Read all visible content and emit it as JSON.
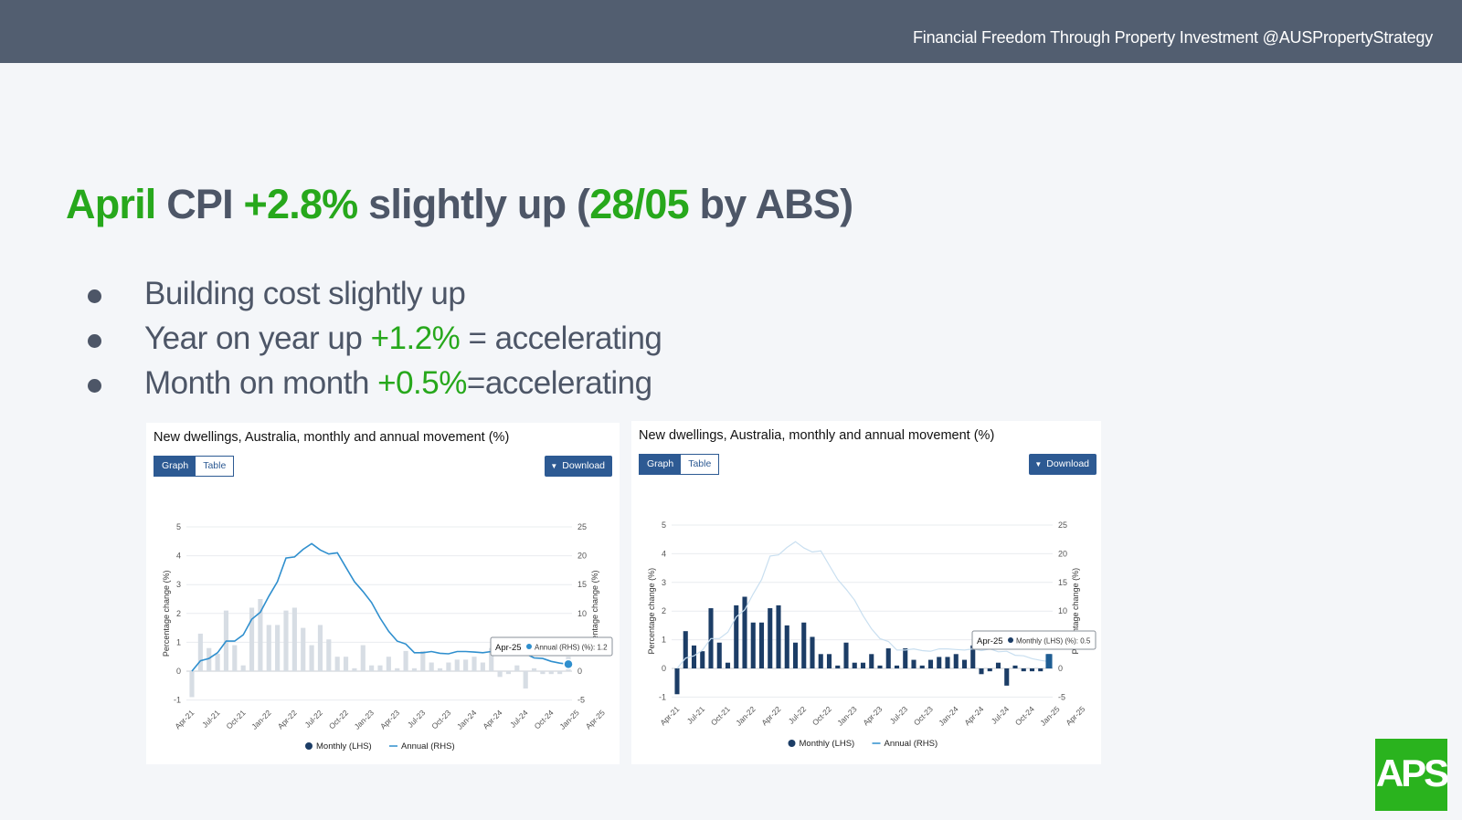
{
  "header": {
    "tagline": "Financial Freedom Through Property Investment @AUSPropertyStrategy"
  },
  "headline": {
    "parts": [
      {
        "text": "April",
        "color": "#27a81c"
      },
      {
        "text": " CPI ",
        "color": "#4d5667"
      },
      {
        "text": "+2.8%",
        "color": "#27a81c"
      },
      {
        "text": " slightly up (",
        "color": "#4d5667"
      },
      {
        "text": "28/05",
        "color": "#27a81c"
      },
      {
        "text": " by ABS)",
        "color": "#4d5667"
      }
    ]
  },
  "bullets": [
    {
      "parts": [
        {
          "text": "Building cost slightly up",
          "hl": false
        }
      ]
    },
    {
      "parts": [
        {
          "text": "Year on year up ",
          "hl": false
        },
        {
          "text": "+1.2%",
          "hl": true
        },
        {
          "text": " = accelerating",
          "hl": false
        }
      ]
    },
    {
      "parts": [
        {
          "text": "Month on month ",
          "hl": false
        },
        {
          "text": "+0.5%",
          "hl": true
        },
        {
          "text": "=accelerating",
          "hl": false
        }
      ]
    }
  ],
  "panels": [
    {
      "title": "New dwellings, Australia, monthly and annual movement (%)",
      "graph_tab": "Graph",
      "table_tab": "Table",
      "download": "Download"
    },
    {
      "title": "New dwellings, Australia, monthly and annual movement (%)",
      "graph_tab": "Graph",
      "table_tab": "Table",
      "download": "Download"
    }
  ],
  "logo": {
    "text": "APS",
    "color": "#2ab31e"
  },
  "colors": {
    "monthly_active": "#1c3d66",
    "monthly_faded": "#d7dde4",
    "annual_active": "#2f8fce",
    "annual_faded": "#c9dff0",
    "accent": "#27a81c"
  },
  "chart_data": [
    {
      "type": "bar",
      "title": "New dwellings, Australia, monthly and annual movement (%)",
      "ylabel": "Percentage change (%)",
      "y2label": "Percentage change (%)",
      "ylim": [
        -1,
        5
      ],
      "y2lim": [
        -5,
        25
      ],
      "yticks": [
        "-1",
        "0",
        "1",
        "2",
        "3",
        "4",
        "5"
      ],
      "y2ticks": [
        "-5",
        "0",
        "5",
        "10",
        "15",
        "20",
        "25"
      ],
      "x_tick_labels": [
        "Apr-21",
        "Jul-21",
        "Oct-21",
        "Jan-22",
        "Apr-22",
        "Jul-22",
        "Oct-22",
        "Jan-23",
        "Apr-23",
        "Jul-23",
        "Oct-23",
        "Jan-24",
        "Apr-24",
        "Jul-24",
        "Oct-24",
        "Jan-25",
        "Apr-25"
      ],
      "highlight": "annual",
      "series": [
        {
          "name": "Monthly (LHS)",
          "axis": "left",
          "type": "bar",
          "values": [
            -0.9,
            1.3,
            0.8,
            0.6,
            2.1,
            0.9,
            0.2,
            2.2,
            2.5,
            1.6,
            1.6,
            2.1,
            2.2,
            1.5,
            0.9,
            1.6,
            1.1,
            0.5,
            0.5,
            0.1,
            0.9,
            0.2,
            0.2,
            0.5,
            0.1,
            0.7,
            0.1,
            0.7,
            0.3,
            0.1,
            0.3,
            0.4,
            0.4,
            0.5,
            0.3,
            0.8,
            -0.2,
            -0.1,
            0.2,
            -0.6,
            0.1,
            -0.1,
            -0.1,
            -0.1,
            0.5
          ]
        },
        {
          "name": "Annual (RHS)",
          "axis": "right",
          "type": "line",
          "values": [
            0,
            1.8,
            2.2,
            3.2,
            5.2,
            5.2,
            6.3,
            9.0,
            10.2,
            13.0,
            15.5,
            19.6,
            19.8,
            21.1,
            22.1,
            21.0,
            20.3,
            20.5,
            18.0,
            15.5,
            13.8,
            11.9,
            9.2,
            6.9,
            5.2,
            4.7,
            3.2,
            3.2,
            3.4,
            3.1,
            3.0,
            3.4,
            3.4,
            3.3,
            3.2,
            3.4,
            3.1,
            3.4,
            2.9,
            3.0,
            2.3,
            2.2,
            1.7,
            1.4,
            1.2
          ]
        }
      ],
      "tooltip": {
        "date": "Apr-25",
        "series": "Annual (RHS) (%)",
        "value": "1.2"
      },
      "legend": {
        "position": "bottom",
        "items": [
          "Monthly (LHS)",
          "Annual (RHS)"
        ]
      }
    },
    {
      "type": "bar",
      "title": "New dwellings, Australia, monthly and annual movement (%)",
      "ylabel": "Percentage change (%)",
      "y2label": "Percentage change (%)",
      "ylim": [
        -1,
        5
      ],
      "y2lim": [
        -5,
        25
      ],
      "yticks": [
        "-1",
        "0",
        "1",
        "2",
        "3",
        "4",
        "5"
      ],
      "y2ticks": [
        "-5",
        "0",
        "5",
        "10",
        "15",
        "20",
        "25"
      ],
      "x_tick_labels": [
        "Apr-21",
        "Jul-21",
        "Oct-21",
        "Jan-22",
        "Apr-22",
        "Jul-22",
        "Oct-22",
        "Jan-23",
        "Apr-23",
        "Jul-23",
        "Oct-23",
        "Jan-24",
        "Apr-24",
        "Jul-24",
        "Oct-24",
        "Jan-25",
        "Apr-25"
      ],
      "highlight": "monthly",
      "series": [
        {
          "name": "Monthly (LHS)",
          "axis": "left",
          "type": "bar",
          "values": [
            -0.9,
            1.3,
            0.8,
            0.6,
            2.1,
            0.9,
            0.2,
            2.2,
            2.5,
            1.6,
            1.6,
            2.1,
            2.2,
            1.5,
            0.9,
            1.6,
            1.1,
            0.5,
            0.5,
            0.1,
            0.9,
            0.2,
            0.2,
            0.5,
            0.1,
            0.7,
            0.1,
            0.7,
            0.3,
            0.1,
            0.3,
            0.4,
            0.4,
            0.5,
            0.3,
            0.8,
            -0.2,
            -0.1,
            0.2,
            -0.6,
            0.1,
            -0.1,
            -0.1,
            -0.1,
            0.5
          ]
        },
        {
          "name": "Annual (RHS)",
          "axis": "right",
          "type": "line",
          "values": [
            0,
            1.8,
            2.2,
            3.2,
            5.2,
            5.2,
            6.3,
            9.0,
            10.2,
            13.0,
            15.5,
            19.6,
            19.8,
            21.1,
            22.1,
            21.0,
            20.3,
            20.5,
            18.0,
            15.5,
            13.8,
            11.9,
            9.2,
            6.9,
            5.2,
            4.7,
            3.2,
            3.2,
            3.4,
            3.1,
            3.0,
            3.4,
            3.4,
            3.3,
            3.2,
            3.4,
            3.1,
            3.4,
            2.9,
            3.0,
            2.3,
            2.2,
            1.7,
            1.4,
            1.2
          ]
        }
      ],
      "tooltip": {
        "date": "Apr-25",
        "series": "Monthly (LHS) (%)",
        "value": "0.5"
      },
      "legend": {
        "position": "bottom",
        "items": [
          "Monthly (LHS)",
          "Annual (RHS)"
        ]
      }
    }
  ]
}
